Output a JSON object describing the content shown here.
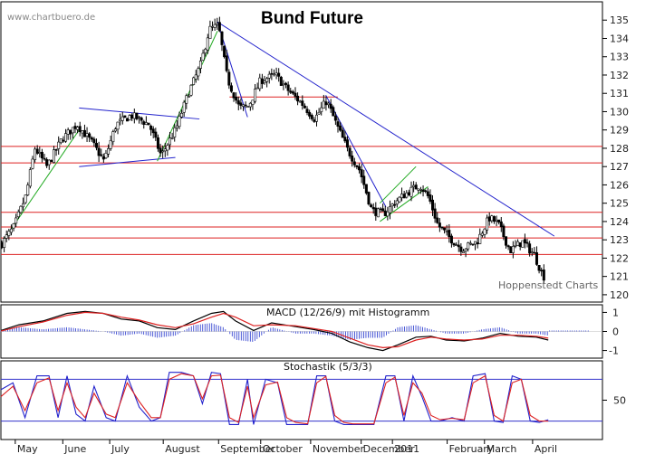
{
  "watermark": "www.chartbuero.de",
  "credit": "Hoppenstedt Charts",
  "chart_data": [
    {
      "type": "candlestick",
      "title": "Bund Future",
      "y_ticks": [
        120,
        121,
        122,
        123,
        124,
        125,
        126,
        127,
        128,
        129,
        130,
        131,
        132,
        133,
        134,
        135
      ],
      "ylim": [
        119.6,
        136.0
      ],
      "support_resistance_lines": [
        128.1,
        127.2,
        124.5,
        123.7,
        123.1,
        122.2,
        130.8
      ],
      "trendlines": [
        {
          "color": "#2222cc",
          "from": [
            0.36,
            134.9
          ],
          "to": [
            0.92,
            123.2
          ]
        },
        {
          "color": "#2222cc",
          "from": [
            0.13,
            130.2
          ],
          "to": [
            0.33,
            129.6
          ]
        },
        {
          "color": "#2222cc",
          "from": [
            0.13,
            127.0
          ],
          "to": [
            0.29,
            127.5
          ]
        },
        {
          "color": "#2222cc",
          "from": [
            0.36,
            134.9
          ],
          "to": [
            0.41,
            129.7
          ]
        },
        {
          "color": "#2222cc",
          "from": [
            0.54,
            130.9
          ],
          "to": [
            0.64,
            124.8
          ]
        },
        {
          "color": "#22aa22",
          "from": [
            0.005,
            123.0
          ],
          "to": [
            0.13,
            129.0
          ]
        },
        {
          "color": "#22aa22",
          "from": [
            0.26,
            127.3
          ],
          "to": [
            0.36,
            134.4
          ]
        },
        {
          "color": "#22aa22",
          "from": [
            0.63,
            124.0
          ],
          "to": [
            0.71,
            125.9
          ]
        },
        {
          "color": "#22aa22",
          "from": [
            0.63,
            125.0
          ],
          "to": [
            0.69,
            127.0
          ]
        }
      ],
      "path": [
        [
          0,
          122.8
        ],
        [
          0.02,
          123.7
        ],
        [
          0.04,
          125.4
        ],
        [
          0.055,
          128.0
        ],
        [
          0.075,
          127.0
        ],
        [
          0.1,
          128.5
        ],
        [
          0.125,
          129.3
        ],
        [
          0.15,
          128.3
        ],
        [
          0.17,
          127.3
        ],
        [
          0.19,
          129.3
        ],
        [
          0.215,
          129.8
        ],
        [
          0.245,
          129.3
        ],
        [
          0.265,
          127.6
        ],
        [
          0.29,
          129.1
        ],
        [
          0.31,
          131.0
        ],
        [
          0.33,
          132.5
        ],
        [
          0.345,
          134.5
        ],
        [
          0.36,
          134.7
        ],
        [
          0.375,
          131.8
        ],
        [
          0.395,
          130.2
        ],
        [
          0.41,
          130.3
        ],
        [
          0.43,
          131.7
        ],
        [
          0.455,
          132.0
        ],
        [
          0.475,
          131.2
        ],
        [
          0.5,
          130.4
        ],
        [
          0.52,
          129.6
        ],
        [
          0.54,
          130.6
        ],
        [
          0.555,
          129.4
        ],
        [
          0.575,
          127.9
        ],
        [
          0.595,
          126.8
        ],
        [
          0.615,
          124.6
        ],
        [
          0.635,
          124.4
        ],
        [
          0.655,
          125.1
        ],
        [
          0.675,
          125.6
        ],
        [
          0.695,
          126.0
        ],
        [
          0.71,
          125.3
        ],
        [
          0.725,
          123.8
        ],
        [
          0.745,
          123.1
        ],
        [
          0.765,
          122.5
        ],
        [
          0.79,
          122.9
        ],
        [
          0.81,
          124.2
        ],
        [
          0.825,
          123.9
        ],
        [
          0.845,
          122.4
        ],
        [
          0.865,
          122.9
        ],
        [
          0.885,
          122.2
        ],
        [
          0.9,
          121.0
        ]
      ]
    },
    {
      "type": "line",
      "title": "MACD (12/26/9) mit Histogramm",
      "y_ticks": [
        1,
        0,
        -1
      ],
      "ylim": [
        -1.4,
        1.4
      ],
      "series": [
        {
          "color": "#000000",
          "points": [
            [
              0,
              0.05
            ],
            [
              0.03,
              0.35
            ],
            [
              0.07,
              0.55
            ],
            [
              0.11,
              0.95
            ],
            [
              0.14,
              1.05
            ],
            [
              0.17,
              0.95
            ],
            [
              0.2,
              0.65
            ],
            [
              0.23,
              0.55
            ],
            [
              0.26,
              0.2
            ],
            [
              0.29,
              0.1
            ],
            [
              0.32,
              0.55
            ],
            [
              0.35,
              0.95
            ],
            [
              0.37,
              1.05
            ],
            [
              0.39,
              0.55
            ],
            [
              0.42,
              0.05
            ],
            [
              0.45,
              0.45
            ],
            [
              0.49,
              0.25
            ],
            [
              0.52,
              0.1
            ],
            [
              0.55,
              -0.1
            ],
            [
              0.58,
              -0.55
            ],
            [
              0.61,
              -0.85
            ],
            [
              0.635,
              -1.0
            ],
            [
              0.66,
              -0.7
            ],
            [
              0.69,
              -0.3
            ],
            [
              0.715,
              -0.25
            ],
            [
              0.74,
              -0.45
            ],
            [
              0.77,
              -0.5
            ],
            [
              0.8,
              -0.35
            ],
            [
              0.83,
              -0.1
            ],
            [
              0.86,
              -0.25
            ],
            [
              0.89,
              -0.3
            ],
            [
              0.91,
              -0.45
            ]
          ]
        },
        {
          "color": "#dd2222",
          "points": [
            [
              0,
              0.02
            ],
            [
              0.03,
              0.25
            ],
            [
              0.07,
              0.5
            ],
            [
              0.11,
              0.85
            ],
            [
              0.14,
              1.0
            ],
            [
              0.17,
              0.95
            ],
            [
              0.2,
              0.75
            ],
            [
              0.23,
              0.6
            ],
            [
              0.26,
              0.35
            ],
            [
              0.29,
              0.2
            ],
            [
              0.32,
              0.4
            ],
            [
              0.35,
              0.75
            ],
            [
              0.37,
              0.95
            ],
            [
              0.39,
              0.75
            ],
            [
              0.42,
              0.3
            ],
            [
              0.45,
              0.35
            ],
            [
              0.49,
              0.3
            ],
            [
              0.52,
              0.15
            ],
            [
              0.55,
              0.0
            ],
            [
              0.58,
              -0.35
            ],
            [
              0.61,
              -0.7
            ],
            [
              0.635,
              -0.85
            ],
            [
              0.66,
              -0.8
            ],
            [
              0.69,
              -0.45
            ],
            [
              0.715,
              -0.3
            ],
            [
              0.74,
              -0.4
            ],
            [
              0.77,
              -0.45
            ],
            [
              0.8,
              -0.4
            ],
            [
              0.83,
              -0.2
            ],
            [
              0.86,
              -0.2
            ],
            [
              0.89,
              -0.25
            ],
            [
              0.91,
              -0.35
            ]
          ]
        }
      ]
    },
    {
      "type": "line",
      "title": "Stochastik (5/3/3)",
      "y_ticks": [
        50
      ],
      "ylim": [
        0,
        100
      ],
      "reference_lines": [
        80,
        20
      ],
      "series": [
        {
          "color": "#2222cc",
          "points": [
            [
              0,
              65
            ],
            [
              0.02,
              75
            ],
            [
              0.04,
              25
            ],
            [
              0.06,
              85
            ],
            [
              0.08,
              85
            ],
            [
              0.095,
              25
            ],
            [
              0.11,
              85
            ],
            [
              0.125,
              30
            ],
            [
              0.14,
              20
            ],
            [
              0.155,
              70
            ],
            [
              0.175,
              25
            ],
            [
              0.19,
              20
            ],
            [
              0.21,
              85
            ],
            [
              0.23,
              40
            ],
            [
              0.25,
              20
            ],
            [
              0.265,
              25
            ],
            [
              0.28,
              90
            ],
            [
              0.3,
              90
            ],
            [
              0.32,
              85
            ],
            [
              0.335,
              45
            ],
            [
              0.35,
              90
            ],
            [
              0.365,
              88
            ],
            [
              0.38,
              15
            ],
            [
              0.395,
              15
            ],
            [
              0.41,
              80
            ],
            [
              0.42,
              15
            ],
            [
              0.44,
              80
            ],
            [
              0.46,
              75
            ],
            [
              0.475,
              15
            ],
            [
              0.49,
              15
            ],
            [
              0.51,
              15
            ],
            [
              0.525,
              85
            ],
            [
              0.54,
              85
            ],
            [
              0.555,
              20
            ],
            [
              0.57,
              15
            ],
            [
              0.585,
              15
            ],
            [
              0.6,
              15
            ],
            [
              0.62,
              15
            ],
            [
              0.64,
              85
            ],
            [
              0.655,
              85
            ],
            [
              0.67,
              20
            ],
            [
              0.685,
              85
            ],
            [
              0.7,
              55
            ],
            [
              0.715,
              20
            ],
            [
              0.73,
              20
            ],
            [
              0.75,
              25
            ],
            [
              0.77,
              20
            ],
            [
              0.785,
              85
            ],
            [
              0.805,
              88
            ],
            [
              0.82,
              20
            ],
            [
              0.835,
              18
            ],
            [
              0.85,
              85
            ],
            [
              0.865,
              80
            ],
            [
              0.88,
              20
            ],
            [
              0.895,
              18
            ],
            [
              0.91,
              22
            ]
          ]
        },
        {
          "color": "#dd2222",
          "points": [
            [
              0,
              55
            ],
            [
              0.02,
              70
            ],
            [
              0.04,
              35
            ],
            [
              0.06,
              75
            ],
            [
              0.08,
              82
            ],
            [
              0.095,
              35
            ],
            [
              0.11,
              75
            ],
            [
              0.125,
              40
            ],
            [
              0.14,
              25
            ],
            [
              0.155,
              60
            ],
            [
              0.175,
              30
            ],
            [
              0.19,
              25
            ],
            [
              0.21,
              75
            ],
            [
              0.23,
              48
            ],
            [
              0.25,
              25
            ],
            [
              0.265,
              25
            ],
            [
              0.28,
              80
            ],
            [
              0.3,
              88
            ],
            [
              0.32,
              85
            ],
            [
              0.335,
              52
            ],
            [
              0.35,
              85
            ],
            [
              0.365,
              86
            ],
            [
              0.38,
              25
            ],
            [
              0.395,
              18
            ],
            [
              0.41,
              70
            ],
            [
              0.42,
              25
            ],
            [
              0.44,
              72
            ],
            [
              0.46,
              76
            ],
            [
              0.475,
              25
            ],
            [
              0.49,
              18
            ],
            [
              0.51,
              16
            ],
            [
              0.525,
              75
            ],
            [
              0.54,
              84
            ],
            [
              0.555,
              28
            ],
            [
              0.57,
              18
            ],
            [
              0.585,
              16
            ],
            [
              0.6,
              16
            ],
            [
              0.62,
              16
            ],
            [
              0.64,
              75
            ],
            [
              0.655,
              83
            ],
            [
              0.67,
              28
            ],
            [
              0.685,
              75
            ],
            [
              0.7,
              60
            ],
            [
              0.715,
              28
            ],
            [
              0.73,
              22
            ],
            [
              0.75,
              24
            ],
            [
              0.77,
              22
            ],
            [
              0.785,
              75
            ],
            [
              0.805,
              85
            ],
            [
              0.82,
              28
            ],
            [
              0.835,
              20
            ],
            [
              0.85,
              75
            ],
            [
              0.865,
              80
            ],
            [
              0.88,
              28
            ],
            [
              0.895,
              20
            ],
            [
              0.91,
              20
            ]
          ]
        }
      ]
    }
  ],
  "x_axis": {
    "labels": [
      "May",
      "June",
      "July",
      "August",
      "September",
      "October",
      "November",
      "December",
      "2011",
      "February",
      "March",
      "April"
    ],
    "positions": [
      0.057,
      0.136,
      0.214,
      0.303,
      0.395,
      0.465,
      0.548,
      0.632,
      0.684,
      0.775,
      0.837,
      0.917
    ]
  }
}
